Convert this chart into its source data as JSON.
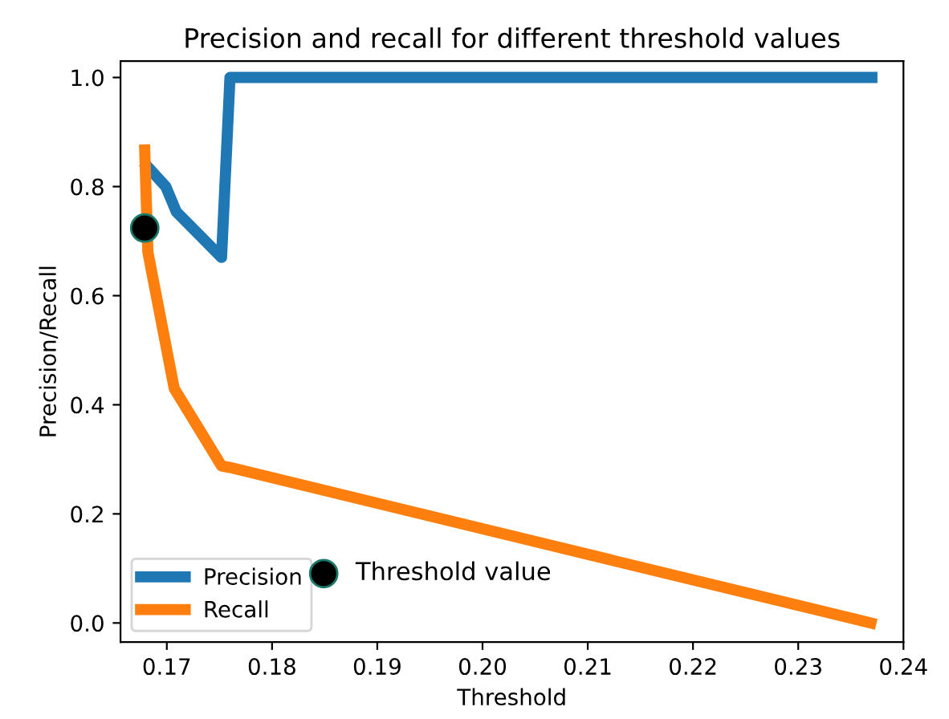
{
  "chart_data": {
    "type": "line",
    "title": "Precision and recall for different threshold values",
    "xlabel": "Threshold",
    "ylabel": "Precision/Recall",
    "series": [
      {
        "name": "Precision",
        "color": "#1f77b4",
        "x": [
          0.1681,
          0.1699,
          0.1709,
          0.1752,
          0.176,
          0.237
        ],
        "values": [
          0.838,
          0.8,
          0.754,
          0.67,
          1.0,
          1.0
        ]
      },
      {
        "name": "Recall",
        "color": "#ff7f0e",
        "x": [
          0.1679,
          0.1682,
          0.1707,
          0.1752,
          0.176,
          0.2369
        ],
        "values": [
          0.867,
          0.68,
          0.43,
          0.288,
          0.285,
          0.0
        ]
      },
      {
        "name": "Threshold value",
        "type": "scatter",
        "color": "#000000",
        "x": [
          0.1679
        ],
        "values": [
          0.724
        ]
      }
    ],
    "xlim": [
      0.1656,
      0.24
    ],
    "ylim": [
      -0.035,
      1.03
    ],
    "xticks": [
      {
        "value": 0.17,
        "label": "0.17"
      },
      {
        "value": 0.18,
        "label": "0.18"
      },
      {
        "value": 0.19,
        "label": "0.19"
      },
      {
        "value": 0.2,
        "label": "0.20"
      },
      {
        "value": 0.21,
        "label": "0.21"
      },
      {
        "value": 0.22,
        "label": "0.22"
      },
      {
        "value": 0.23,
        "label": "0.23"
      },
      {
        "value": 0.24,
        "label": "0.24"
      }
    ],
    "yticks": [
      {
        "value": 0,
        "label": "0.0"
      },
      {
        "value": 0.2,
        "label": "0.2"
      },
      {
        "value": 0.4,
        "label": "0.4"
      },
      {
        "value": 0.6,
        "label": "0.6"
      },
      {
        "value": 0.8,
        "label": "0.8"
      },
      {
        "value": 1,
        "label": "1.0"
      }
    ],
    "legend": "bottom left",
    "grid": false
  }
}
